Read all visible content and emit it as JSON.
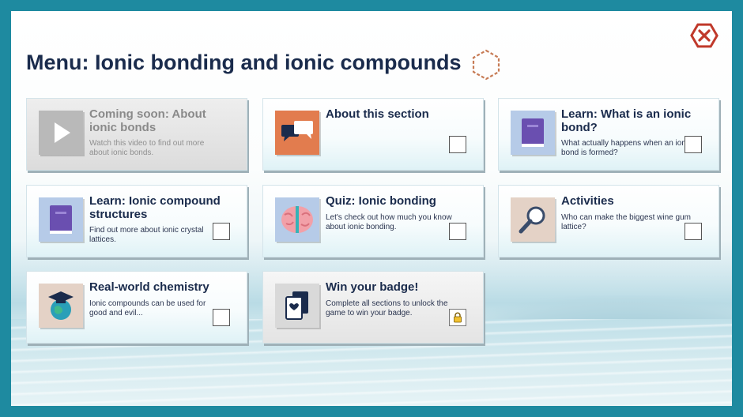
{
  "page": {
    "title": "Menu: Ionic bonding and ionic compounds"
  },
  "colors": {
    "frame": "#1e8aa0",
    "title": "#1a2b4c",
    "close": "#c0392b",
    "hexagon": "#c77b55",
    "checkbox_border": "#555555"
  },
  "cards": [
    {
      "title": "Coming soon: About ionic bonds",
      "description": "Watch this video to find out more about ionic bonds.",
      "icon": "play-icon",
      "state": "disabled"
    },
    {
      "title": "About this section",
      "description": "",
      "icon": "speech-bubbles-icon",
      "state": "unchecked"
    },
    {
      "title": "Learn: What is an ionic bond?",
      "description": "What actually happens when an ionic bond is formed?",
      "icon": "book-icon",
      "state": "unchecked"
    },
    {
      "title": "Learn: Ionic compound structures",
      "description": "Find out more about ionic crystal lattices.",
      "icon": "book-icon",
      "state": "unchecked"
    },
    {
      "title": "Quiz: Ionic bonding",
      "description": "Let's check out how much you know about ionic bonding.",
      "icon": "brain-icon",
      "state": "unchecked"
    },
    {
      "title": "Activities",
      "description": "Who can make the biggest wine gum lattice?",
      "icon": "magnifier-icon",
      "state": "unchecked"
    },
    {
      "title": "Real-world chemistry",
      "description": "Ionic compounds can be used for good and evil...",
      "icon": "globe-graduation-icon",
      "state": "unchecked"
    },
    {
      "title": "Win your badge!",
      "description": "Complete all sections to unlock the game to win your badge.",
      "icon": "playing-card-icon",
      "state": "locked"
    }
  ]
}
